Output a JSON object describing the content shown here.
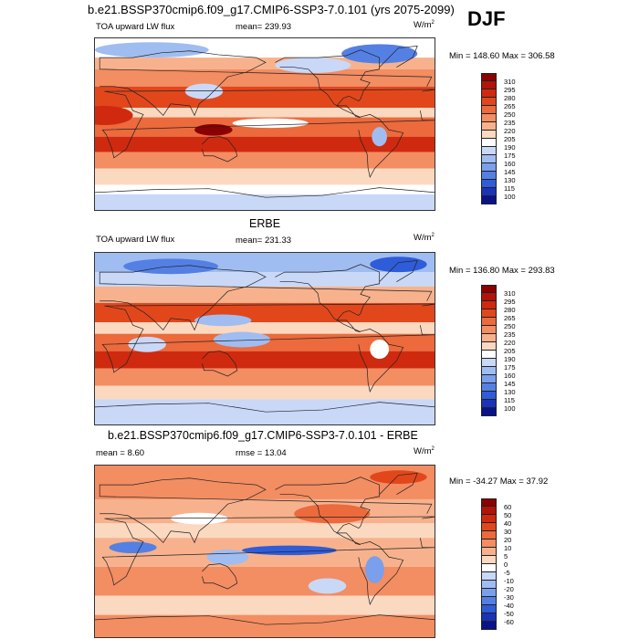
{
  "header": {
    "title": "b.e21.BSSP370cmip6.f09_g17.CMIP6-SSP3-7.0.101 (yrs 2075-2099)",
    "season": "DJF"
  },
  "panels": [
    {
      "section_title": "",
      "left_label": "TOA upward LW flux",
      "center_label": "mean= 239.93",
      "units": "W/m",
      "units_sup": "2",
      "minmax": "Min = 148.60 Max = 306.58",
      "colorbar": {
        "ticks": [
          "310",
          "295",
          "280",
          "265",
          "250",
          "235",
          "220",
          "205",
          "190",
          "175",
          "160",
          "145",
          "130",
          "115",
          "100"
        ],
        "colors": [
          "#8b0000",
          "#b0140a",
          "#cf2a0f",
          "#e2471c",
          "#ec6a3c",
          "#f38d62",
          "#f7b28d",
          "#fbd9c0",
          "#ffffff",
          "#c9d8f7",
          "#a0bdf1",
          "#7a9fec",
          "#5480e4",
          "#2f5cd8",
          "#1a33b8",
          "#0a128a"
        ]
      },
      "map_field": "model"
    },
    {
      "section_title": "ERBE",
      "left_label": "TOA upward LW flux",
      "center_label": "mean= 231.33",
      "units": "W/m",
      "units_sup": "2",
      "minmax": "Min = 136.80 Max = 293.83",
      "colorbar": {
        "ticks": [
          "310",
          "295",
          "280",
          "265",
          "250",
          "235",
          "220",
          "205",
          "190",
          "175",
          "160",
          "145",
          "130",
          "115",
          "100"
        ],
        "colors": [
          "#8b0000",
          "#b0140a",
          "#cf2a0f",
          "#e2471c",
          "#ec6a3c",
          "#f38d62",
          "#f7b28d",
          "#fbd9c0",
          "#ffffff",
          "#c9d8f7",
          "#a0bdf1",
          "#7a9fec",
          "#5480e4",
          "#2f5cd8",
          "#1a33b8",
          "#0a128a"
        ]
      },
      "map_field": "obs"
    },
    {
      "section_title": "b.e21.BSSP370cmip6.f09_g17.CMIP6-SSP3-7.0.101 - ERBE",
      "left_label": "mean =   8.60",
      "center_label": "rmse =  13.04",
      "units": "W/m",
      "units_sup": "2",
      "minmax": "Min = -34.27 Max =  37.92",
      "colorbar": {
        "ticks": [
          "60",
          "50",
          "40",
          "30",
          "20",
          "10",
          "5",
          "0",
          "-5",
          "-10",
          "-20",
          "-30",
          "-40",
          "-50",
          "-60"
        ],
        "colors": [
          "#8b0000",
          "#b0140a",
          "#cf2a0f",
          "#e2471c",
          "#ec6a3c",
          "#f38d62",
          "#f7b28d",
          "#fbd9c0",
          "#ffffff",
          "#c9d8f7",
          "#a0bdf1",
          "#7a9fec",
          "#5480e4",
          "#2f5cd8",
          "#1a33b8",
          "#0a128a"
        ]
      },
      "map_field": "diff"
    }
  ]
}
